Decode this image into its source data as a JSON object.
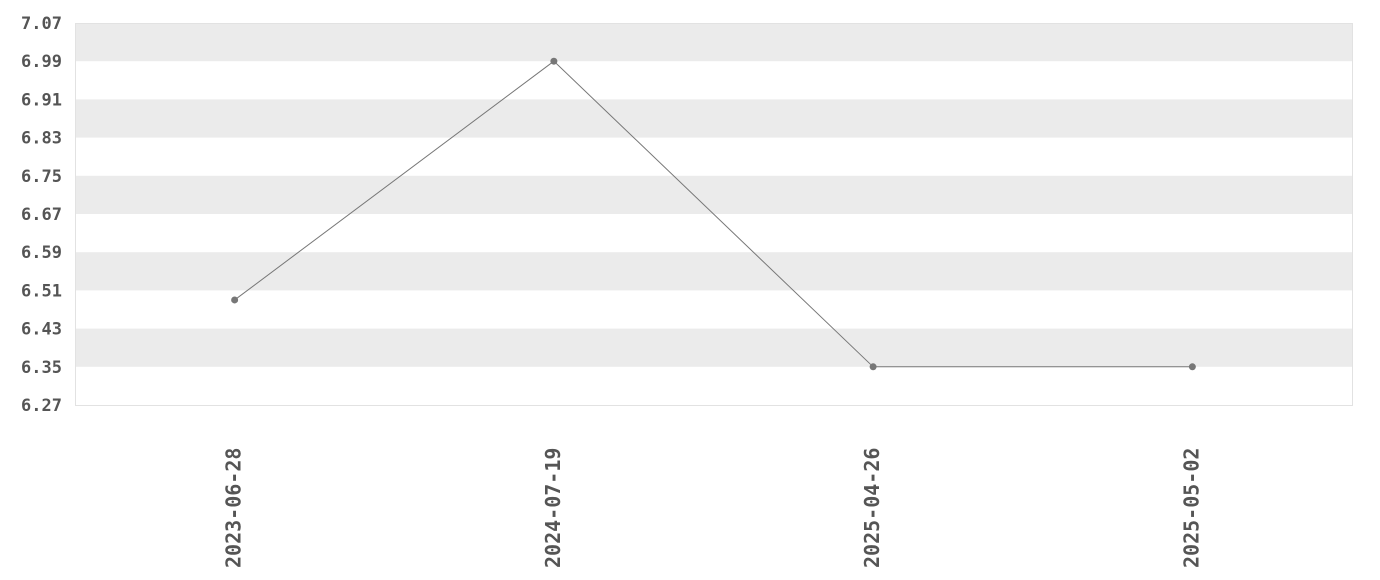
{
  "chart_data": {
    "type": "line",
    "title": "",
    "xlabel": "",
    "ylabel": "",
    "categories": [
      "2023-06-28",
      "2024-07-19",
      "2025-04-26",
      "2025-05-02"
    ],
    "values": [
      6.49,
      6.99,
      6.35,
      6.35
    ],
    "ylim": [
      6.27,
      7.07
    ],
    "yticks": [
      "7.07",
      "6.99",
      "6.91",
      "6.83",
      "6.75",
      "6.67",
      "6.59",
      "6.51",
      "6.43",
      "6.35",
      "6.27"
    ],
    "grid": "alternating horizontal bands",
    "legend": "none",
    "colors": {
      "line": "#777777",
      "marker": "#777777",
      "band": "#ebebeb",
      "text": "#555555"
    }
  }
}
